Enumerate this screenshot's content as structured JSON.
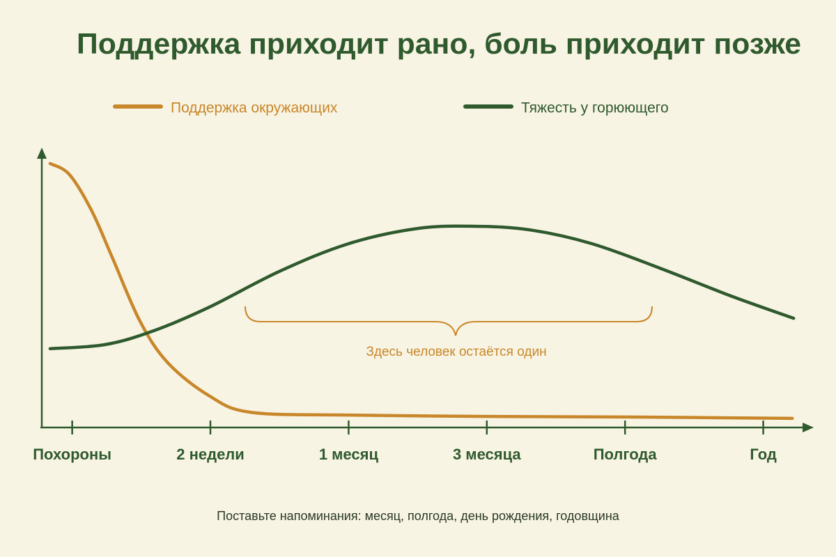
{
  "chart_data": {
    "type": "line",
    "title": "Поддержка приходит рано, боль приходит позже",
    "xticks": [
      {
        "value": 0,
        "label": "Похороны"
      },
      {
        "value": 1,
        "label": "2 недели"
      },
      {
        "value": 2,
        "label": "1 месяц"
      },
      {
        "value": 3,
        "label": "3 месяца"
      },
      {
        "value": 4,
        "label": "Полгода"
      },
      {
        "value": 5,
        "label": "Год"
      }
    ],
    "xlim": [
      -0.22,
      5.35
    ],
    "ylim": [
      0,
      100
    ],
    "series": [
      {
        "name": "Поддержка окружающих",
        "color": "#c8872a",
        "x": [
          -0.16,
          -0.02,
          0.14,
          0.29,
          0.49,
          0.69,
          0.99,
          1.29,
          2.0,
          3.0,
          4.0,
          5.21
        ],
        "values": [
          95,
          91,
          78,
          61,
          38,
          23,
          11,
          5,
          4,
          3.5,
          3.3,
          2.8
        ]
      },
      {
        "name": "Тяжесть у горюющего",
        "color": "#2f5a2e",
        "x": [
          -0.16,
          0.24,
          0.59,
          0.99,
          1.5,
          2.0,
          2.5,
          2.91,
          3.31,
          3.76,
          4.26,
          4.77,
          5.22
        ],
        "values": [
          28,
          29.5,
          34.5,
          43,
          56,
          66,
          71.5,
          72.3,
          71,
          66,
          57,
          47,
          39
        ]
      }
    ],
    "annotation": "Здесь человек остаётся один",
    "footnote": "Поставьте напоминания: месяц, полгода, день рождения, годовщина"
  }
}
